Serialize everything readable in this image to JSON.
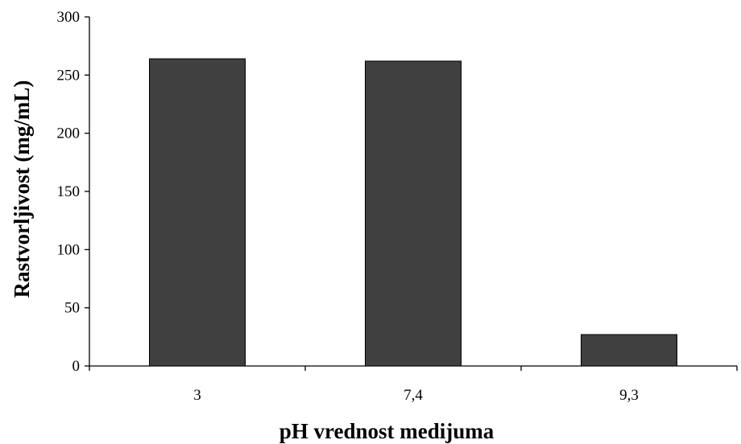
{
  "chart_data": {
    "type": "bar",
    "categories": [
      "3",
      "7,4",
      "9,3"
    ],
    "values": [
      264,
      262,
      27
    ],
    "xlabel": "pH vrednost medijuma",
    "ylabel": "Rastvorljivost (mg/mL)",
    "ylim": [
      0,
      300
    ],
    "yticks": [
      0,
      50,
      100,
      150,
      200,
      250,
      300
    ],
    "grid": false,
    "legend": "none",
    "bar_color": "#404040",
    "bar_edge_color": "#000000",
    "axis_color": "#000000"
  }
}
